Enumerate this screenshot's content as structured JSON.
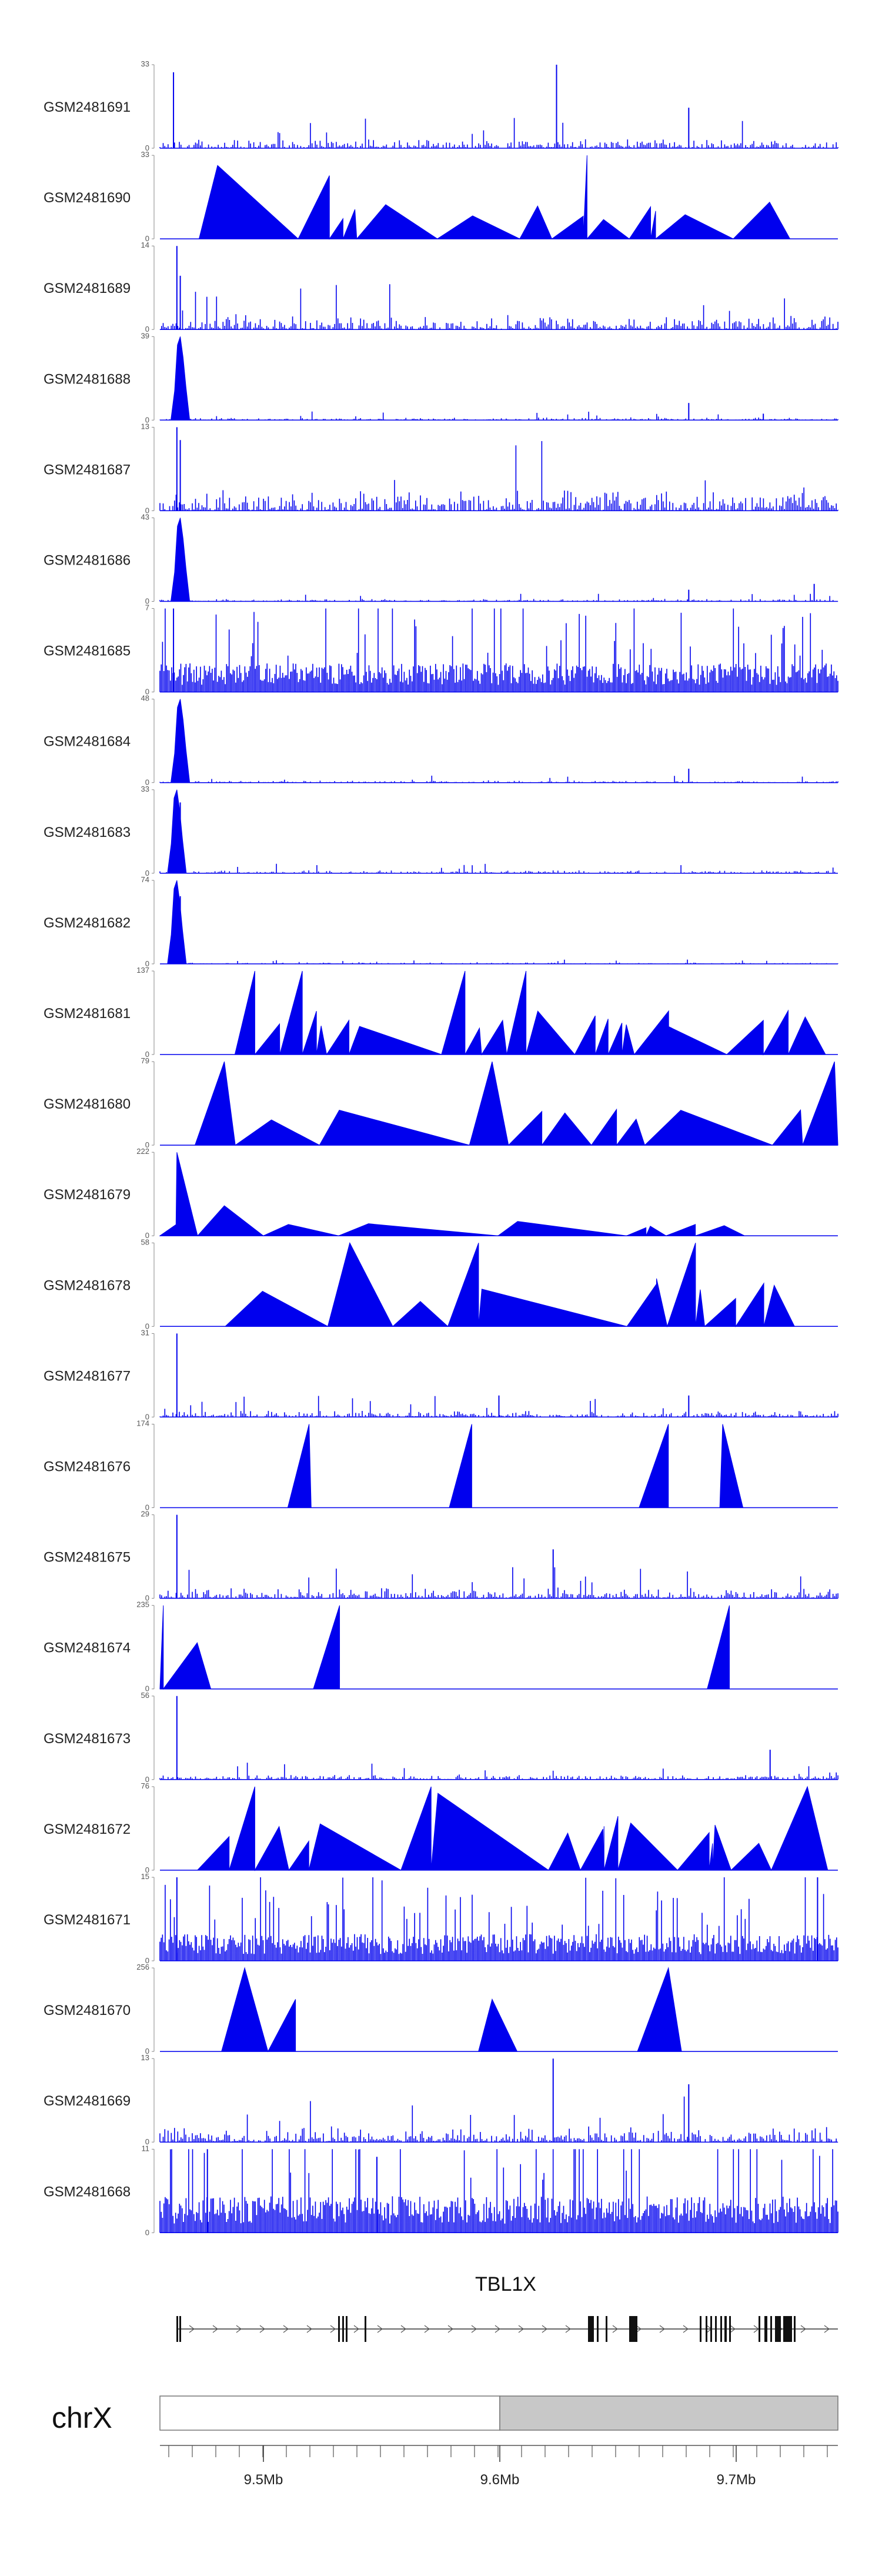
{
  "chart_data": {
    "type": "area",
    "chromosome": "chrX",
    "gene": "TBL1X",
    "axis_ticks": [
      "9.5Mb",
      "9.6Mb",
      "9.7Mb"
    ],
    "x_range_mb": [
      9.456,
      9.742
    ],
    "series_color": "#0000EE",
    "tracks": [
      {
        "name": "GSM2481691",
        "ymax": "33",
        "ymin": "0",
        "style": "sparse",
        "peaks": [
          [
            0.02,
            30
          ],
          [
            0.585,
            33
          ],
          [
            0.78,
            16
          ]
        ],
        "background": 3
      },
      {
        "name": "GSM2481690",
        "ymax": "33",
        "ymin": "0",
        "style": "triangles",
        "peaks": [
          [
            0.085,
            29
          ],
          [
            0.25,
            25
          ],
          [
            0.63,
            33
          ]
        ],
        "background": 12
      },
      {
        "name": "GSM2481689",
        "ymax": "14",
        "ymin": "0",
        "style": "sparse",
        "peaks": [
          [
            0.025,
            14
          ],
          [
            0.03,
            9
          ]
        ],
        "background": 2
      },
      {
        "name": "GSM2481688",
        "ymax": "39",
        "ymin": "0",
        "style": "cluster",
        "peaks": [
          [
            0.03,
            39
          ],
          [
            0.78,
            8
          ],
          [
            0.89,
            3
          ]
        ],
        "background": 1
      },
      {
        "name": "GSM2481687",
        "ymax": "13",
        "ymin": "0",
        "style": "sparse",
        "peaks": [
          [
            0.025,
            13
          ],
          [
            0.03,
            11
          ]
        ],
        "background": 3
      },
      {
        "name": "GSM2481686",
        "ymax": "43",
        "ymin": "0",
        "style": "cluster",
        "peaks": [
          [
            0.03,
            43
          ],
          [
            0.78,
            6
          ],
          [
            0.965,
            9
          ]
        ],
        "background": 1
      },
      {
        "name": "GSM2481685",
        "ymax": "7",
        "ymin": "0",
        "style": "dense",
        "peaks": [
          [
            0.02,
            7
          ]
        ],
        "background": 2
      },
      {
        "name": "GSM2481684",
        "ymax": "48",
        "ymin": "0",
        "style": "cluster",
        "peaks": [
          [
            0.03,
            48
          ],
          [
            0.78,
            8
          ]
        ],
        "background": 1
      },
      {
        "name": "GSM2481683",
        "ymax": "33",
        "ymin": "0",
        "style": "cluster",
        "peaks": [
          [
            0.025,
            33
          ],
          [
            0.03,
            28
          ]
        ],
        "background": 1
      },
      {
        "name": "GSM2481682",
        "ymax": "74",
        "ymin": "0",
        "style": "cluster",
        "peaks": [
          [
            0.025,
            74
          ],
          [
            0.03,
            60
          ]
        ],
        "background": 1
      },
      {
        "name": "GSM2481681",
        "ymax": "137",
        "ymin": "0",
        "style": "triangles",
        "peaks": [
          [
            0.14,
            137
          ],
          [
            0.21,
            137
          ],
          [
            0.45,
            137
          ],
          [
            0.54,
            137
          ]
        ],
        "background": 60
      },
      {
        "name": "GSM2481680",
        "ymax": "79",
        "ymin": "0",
        "style": "triangles",
        "peaks": [
          [
            0.095,
            79
          ],
          [
            0.49,
            79
          ],
          [
            0.995,
            79
          ]
        ],
        "background": 30
      },
      {
        "name": "GSM2481679",
        "ymax": "222",
        "ymin": "0",
        "style": "triangles",
        "peaks": [
          [
            0.025,
            222
          ],
          [
            0.095,
            80
          ]
        ],
        "background": 30
      },
      {
        "name": "GSM2481678",
        "ymax": "58",
        "ymin": "0",
        "style": "triangles",
        "peaks": [
          [
            0.28,
            58
          ],
          [
            0.47,
            58
          ],
          [
            0.79,
            58
          ]
        ],
        "background": 28
      },
      {
        "name": "GSM2481677",
        "ymax": "31",
        "ymin": "0",
        "style": "sparse",
        "peaks": [
          [
            0.025,
            31
          ],
          [
            0.5,
            8
          ],
          [
            0.78,
            8
          ]
        ],
        "background": 2
      },
      {
        "name": "GSM2481676",
        "ymax": "174",
        "ymin": "0",
        "style": "triangles",
        "peaks": [
          [
            0.22,
            174
          ],
          [
            0.46,
            174
          ],
          [
            0.75,
            174
          ],
          [
            0.83,
            174
          ]
        ],
        "background": 0
      },
      {
        "name": "GSM2481675",
        "ymax": "29",
        "ymin": "0",
        "style": "sparse",
        "peaks": [
          [
            0.025,
            29
          ],
          [
            0.58,
            17
          ]
        ],
        "background": 3
      },
      {
        "name": "GSM2481674",
        "ymax": "235",
        "ymin": "0",
        "style": "triangles",
        "peaks": [
          [
            0.005,
            235
          ],
          [
            0.055,
            130
          ],
          [
            0.265,
            235
          ],
          [
            0.84,
            235
          ]
        ],
        "background": 0
      },
      {
        "name": "GSM2481673",
        "ymax": "56",
        "ymin": "0",
        "style": "sparse",
        "peaks": [
          [
            0.025,
            56
          ],
          [
            0.9,
            20
          ]
        ],
        "background": 3
      },
      {
        "name": "GSM2481672",
        "ymax": "76",
        "ymin": "0",
        "style": "triangles",
        "peaks": [
          [
            0.14,
            76
          ],
          [
            0.4,
            76
          ],
          [
            0.41,
            70
          ],
          [
            0.955,
            76
          ]
        ],
        "background": 40
      },
      {
        "name": "GSM2481671",
        "ymax": "15",
        "ymin": "0",
        "style": "dense",
        "peaks": [
          [
            0.025,
            15
          ],
          [
            0.97,
            15
          ]
        ],
        "background": 4
      },
      {
        "name": "GSM2481670",
        "ymax": "256",
        "ymin": "0",
        "style": "triangles",
        "peaks": [
          [
            0.125,
            256
          ],
          [
            0.2,
            160
          ],
          [
            0.49,
            160
          ],
          [
            0.75,
            256
          ]
        ],
        "background": 0
      },
      {
        "name": "GSM2481669",
        "ymax": "13",
        "ymin": "0",
        "style": "sparse",
        "peaks": [
          [
            0.58,
            13
          ],
          [
            0.78,
            9
          ]
        ],
        "background": 2
      },
      {
        "name": "GSM2481668",
        "ymax": "11",
        "ymin": "0",
        "style": "dense",
        "peaks": [
          [
            0.07,
            11
          ],
          [
            0.32,
            10
          ]
        ],
        "background": 4
      }
    ]
  }
}
